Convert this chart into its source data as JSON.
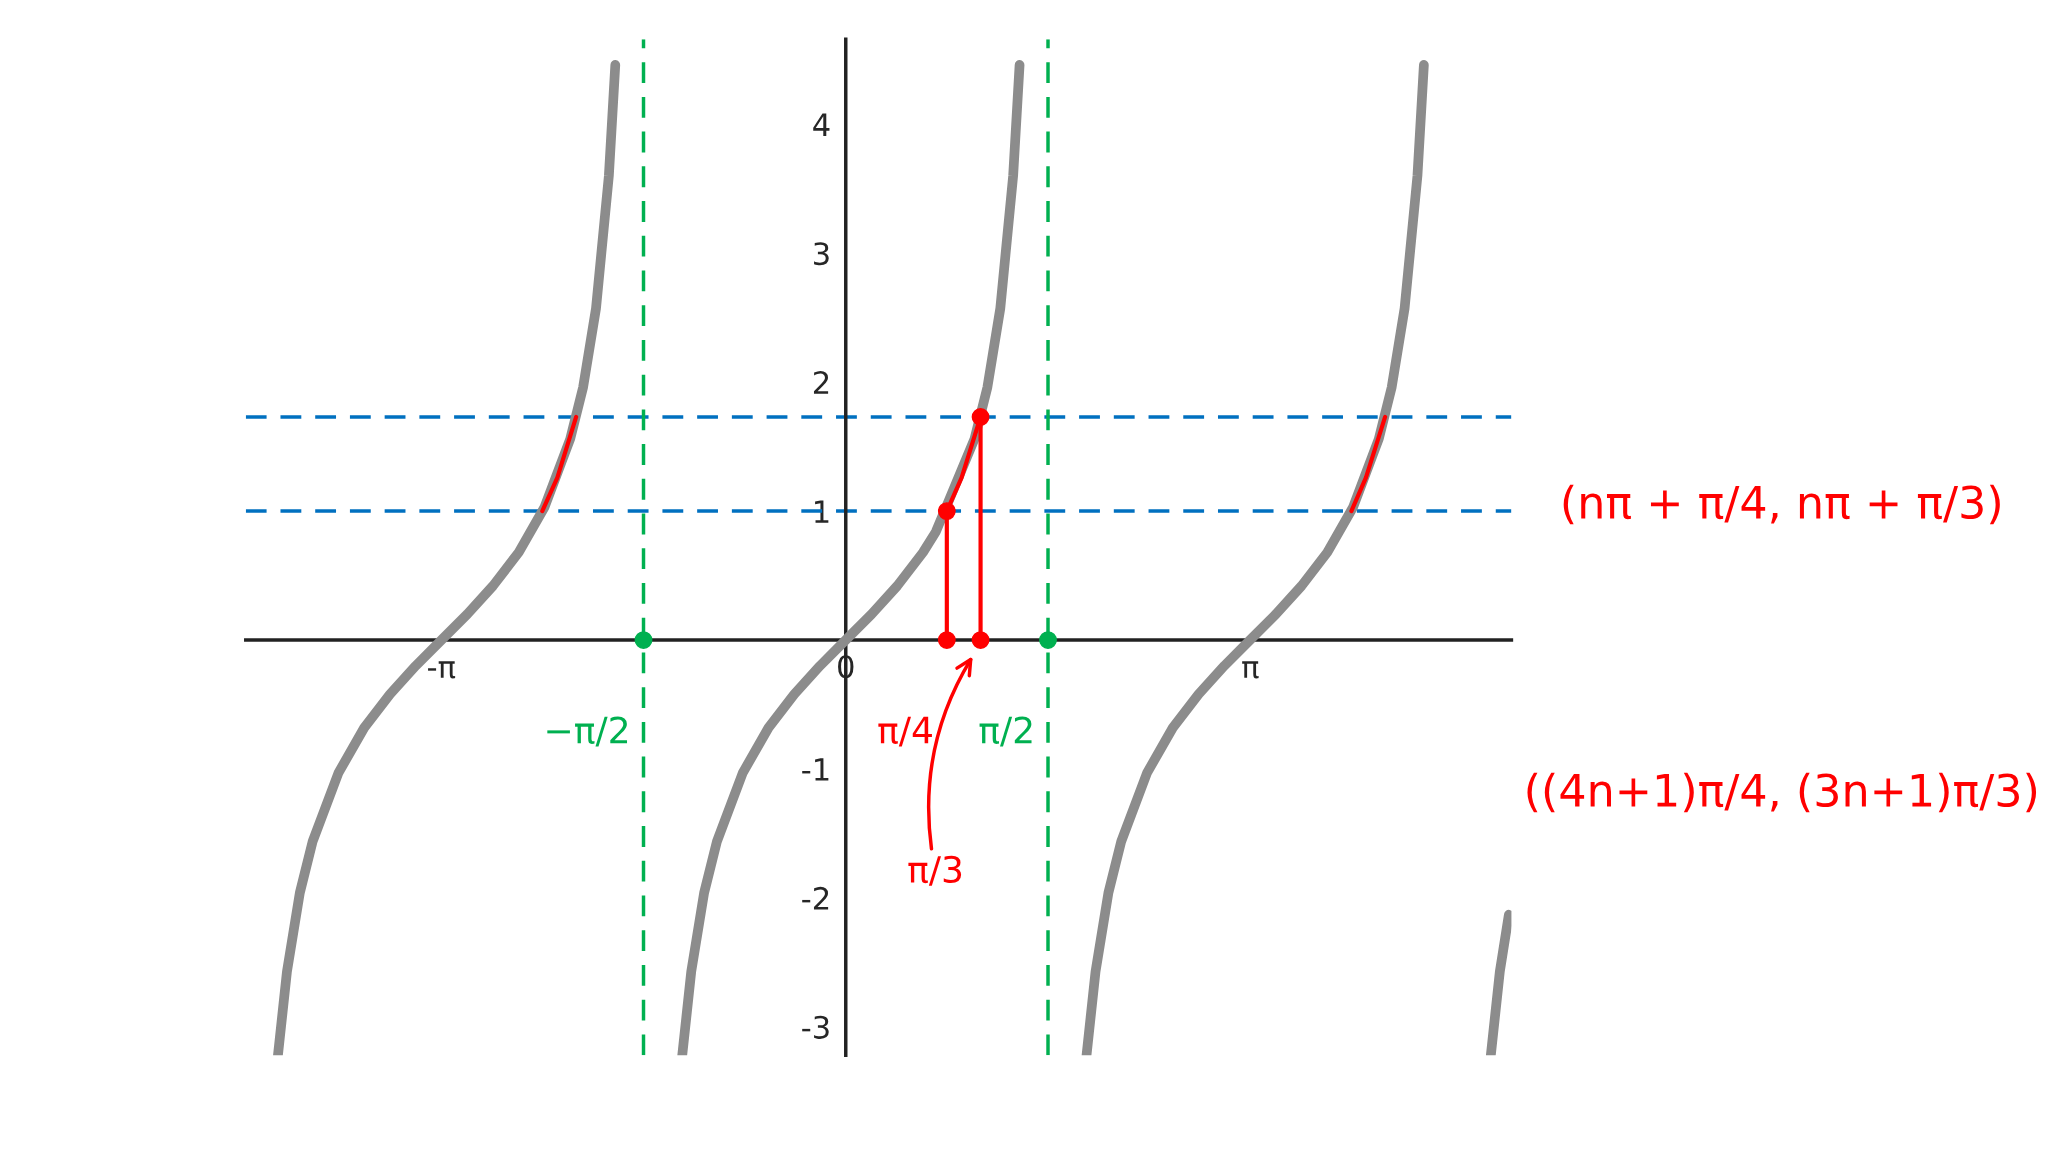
{
  "chart_data": {
    "type": "line",
    "xlim": [
      -4.66,
      5.17
    ],
    "ylim": [
      -3.22,
      4.66
    ],
    "xticks": [
      {
        "value": -3.1416,
        "label": "-π"
      },
      0,
      {
        "value": 3.1416,
        "label": "π"
      }
    ],
    "yticks": [
      -3,
      -2,
      -1,
      1,
      2,
      3,
      4
    ],
    "grid": false,
    "legend": false,
    "series": [
      {
        "color": "#8c8c8c",
        "x": [
          -4.41,
          -4.34,
          -4.24,
          -4.14,
          -3.94,
          -3.74,
          -3.54,
          -3.34,
          -3.14,
          -2.94,
          -2.74,
          -2.54,
          -2.34,
          -2.14,
          -2.04,
          -1.94,
          -1.84,
          -1.79
        ],
        "values": [
          -3.22,
          -2.57,
          -1.96,
          -1.56,
          -1.03,
          -0.68,
          -0.42,
          -0.2,
          0,
          0.2,
          0.42,
          0.68,
          1.03,
          1.56,
          1.96,
          2.57,
          3.6,
          4.46
        ]
      },
      {
        "color": "#8c8c8c",
        "x": [
          -1.27,
          -1.2,
          -1.1,
          -1.0,
          -0.8,
          -0.6,
          -0.4,
          -0.2,
          0,
          0.2,
          0.4,
          0.6,
          0.7,
          1.0,
          1.1,
          1.2,
          1.3,
          1.35
        ],
        "values": [
          -3.22,
          -2.57,
          -1.96,
          -1.56,
          -1.03,
          -0.68,
          -0.42,
          -0.2,
          0,
          0.2,
          0.42,
          0.68,
          0.84,
          1.56,
          1.96,
          2.57,
          3.6,
          4.46
        ]
      },
      {
        "color": "#8c8c8c",
        "x": [
          1.87,
          1.94,
          2.04,
          2.14,
          2.34,
          2.54,
          2.74,
          2.94,
          3.14,
          3.34,
          3.54,
          3.74,
          3.94,
          4.14,
          4.24,
          4.34,
          4.44,
          4.49
        ],
        "values": [
          -3.22,
          -2.57,
          -1.96,
          -1.56,
          -1.03,
          -0.68,
          -0.42,
          -0.2,
          0,
          0.2,
          0.42,
          0.68,
          1.03,
          1.56,
          1.96,
          2.57,
          3.6,
          4.46
        ]
      },
      {
        "color": "#8c8c8c",
        "x": [
          5.01,
          5.08,
          5.15
        ],
        "values": [
          -3.22,
          -2.57,
          -2.13
        ]
      },
      {
        "color": "#ff0000",
        "x": [
          -2.357,
          -2.24,
          -2.094
        ],
        "values": [
          1,
          1.26,
          1.73
        ]
      },
      {
        "color": "#ff0000",
        "x": [
          0.785,
          0.9,
          1.047
        ],
        "values": [
          1,
          1.26,
          1.73
        ]
      },
      {
        "color": "#ff0000",
        "x": [
          3.927,
          4.04,
          4.189
        ],
        "values": [
          1,
          1.26,
          1.73
        ]
      },
      {
        "color": "#ff0000",
        "x": [
          0.785,
          0.785
        ],
        "values": [
          0,
          1
        ]
      },
      {
        "color": "#ff0000",
        "x": [
          1.047,
          1.047
        ],
        "values": [
          0,
          1.73
        ]
      },
      {
        "type": "scatter",
        "color": "#ff0000",
        "x": [
          0.785,
          1.047,
          0.785,
          1.047
        ],
        "values": [
          0,
          0,
          1,
          1.73
        ]
      },
      {
        "type": "scatter",
        "color": "#00b050",
        "x": [
          -1.5708,
          1.5708
        ],
        "values": [
          0,
          0
        ]
      }
    ],
    "ref_lines": [
      {
        "axis": "y",
        "value": 1,
        "color": "#0070c0",
        "line_style": "dashed"
      },
      {
        "axis": "y",
        "value": 1.73,
        "color": "#0070c0",
        "line_style": "dashed"
      },
      {
        "axis": "x",
        "value": -1.5708,
        "color": "#00b050",
        "line_style": "dashed"
      },
      {
        "axis": "x",
        "value": 1.5708,
        "color": "#00b050",
        "line_style": "dashed"
      }
    ],
    "annotations": [
      {
        "text": "−π/2",
        "x": -1.5708,
        "y": 0
      },
      {
        "text": "π/2",
        "x": 1.5708,
        "y": 0
      },
      {
        "text": "π/4",
        "x": 0.785,
        "y": 0
      },
      "π/3",
      "(nπ + π/4, nπ + π/3)",
      "((4n+1)π/4, (3n+1)π/3)"
    ]
  }
}
